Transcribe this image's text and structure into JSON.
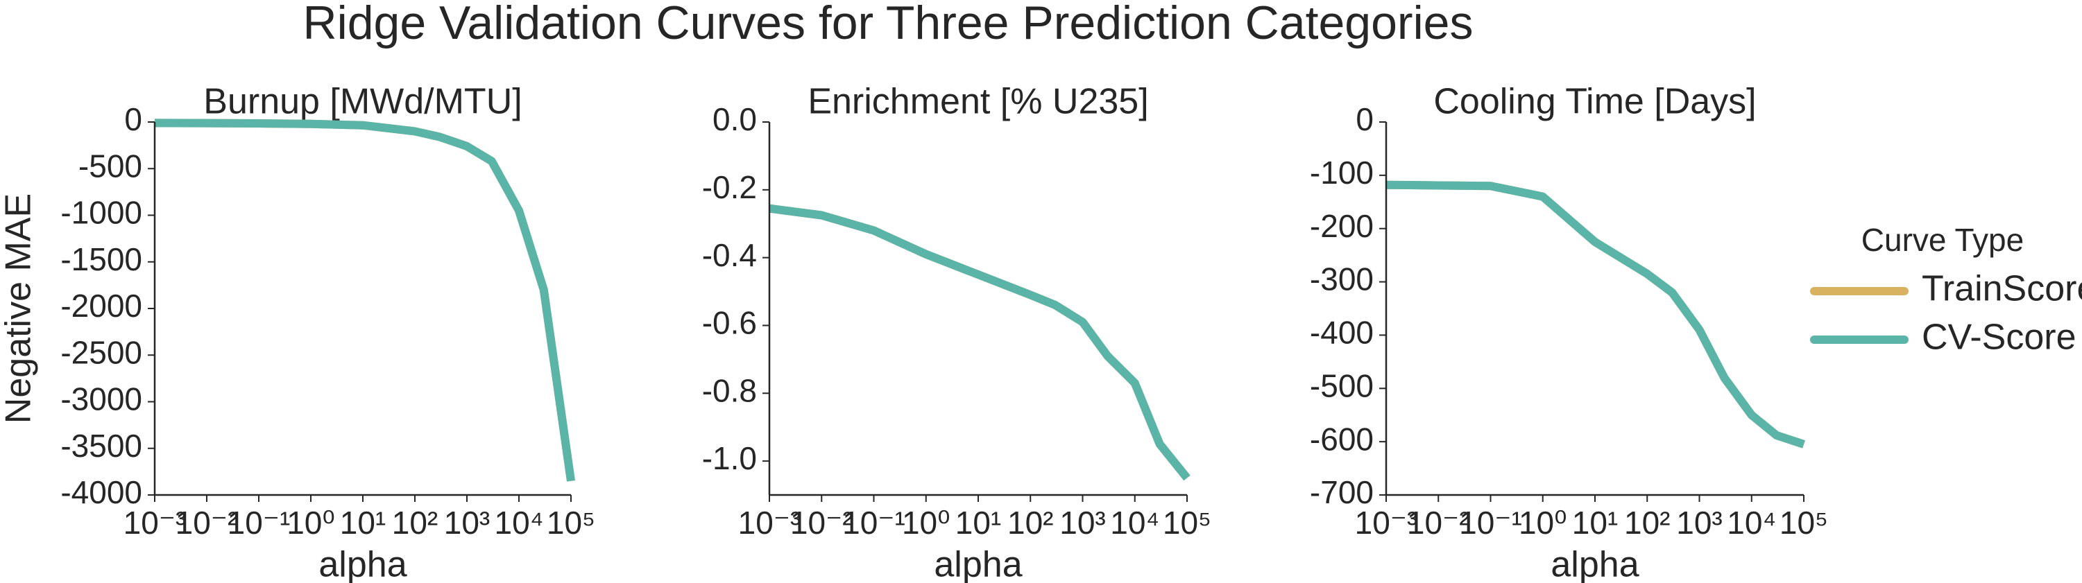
{
  "title": "Ridge Validation Curves for Three Prediction Categories",
  "chart_data": [
    {
      "type": "line",
      "title": "Burnup [MWd/MTU]",
      "xlabel": "alpha",
      "ylabel": "Negative MAE",
      "xscale": "log",
      "x": [
        0.001,
        0.01,
        0.1,
        1,
        10,
        100,
        300,
        1000,
        3000,
        10000,
        30000,
        100000
      ],
      "series": [
        {
          "name": "TrainScore",
          "color": "#d9b260",
          "values": [
            -10,
            -12,
            -15,
            -20,
            -35,
            -100,
            -160,
            -260,
            -420,
            -950,
            -1800,
            -3850
          ]
        },
        {
          "name": "CV-Score",
          "color": "#5ab4a7",
          "values": [
            -10,
            -12,
            -15,
            -20,
            -35,
            -100,
            -160,
            -260,
            -420,
            -950,
            -1800,
            -3850
          ]
        }
      ],
      "xlim": [
        0.001,
        100000
      ],
      "xticks": [
        {
          "value": 0.001,
          "label": "10⁻³"
        },
        {
          "value": 0.01,
          "label": "10⁻²"
        },
        {
          "value": 0.1,
          "label": "10⁻¹"
        },
        {
          "value": 1,
          "label": "10⁰"
        },
        {
          "value": 10,
          "label": "10¹"
        },
        {
          "value": 100,
          "label": "10²"
        },
        {
          "value": 1000,
          "label": "10³"
        },
        {
          "value": 10000,
          "label": "10⁴"
        },
        {
          "value": 100000,
          "label": "10⁵"
        }
      ],
      "ylim": [
        -4000,
        0
      ],
      "yticks": [
        0,
        -500,
        -1000,
        -1500,
        -2000,
        -2500,
        -3000,
        -3500,
        -4000
      ]
    },
    {
      "type": "line",
      "title": "Enrichment [% U235]",
      "xlabel": "alpha",
      "xscale": "log",
      "x": [
        0.001,
        0.01,
        0.1,
        1,
        10,
        100,
        300,
        1000,
        3000,
        10000,
        30000,
        100000
      ],
      "series": [
        {
          "name": "TrainScore",
          "color": "#d9b260",
          "values": [
            -0.255,
            -0.275,
            -0.32,
            -0.39,
            -0.45,
            -0.51,
            -0.54,
            -0.59,
            -0.69,
            -0.77,
            -0.95,
            -1.05
          ]
        },
        {
          "name": "CV-Score",
          "color": "#5ab4a7",
          "values": [
            -0.255,
            -0.275,
            -0.32,
            -0.39,
            -0.45,
            -0.51,
            -0.54,
            -0.59,
            -0.69,
            -0.77,
            -0.95,
            -1.05
          ]
        }
      ],
      "xlim": [
        0.001,
        100000
      ],
      "xticks": [
        {
          "value": 0.001,
          "label": "10⁻³"
        },
        {
          "value": 0.01,
          "label": "10⁻²"
        },
        {
          "value": 0.1,
          "label": "10⁻¹"
        },
        {
          "value": 1,
          "label": "10⁰"
        },
        {
          "value": 10,
          "label": "10¹"
        },
        {
          "value": 100,
          "label": "10²"
        },
        {
          "value": 1000,
          "label": "10³"
        },
        {
          "value": 10000,
          "label": "10⁴"
        },
        {
          "value": 100000,
          "label": "10⁵"
        }
      ],
      "ylim": [
        -1.1,
        0
      ],
      "yticks": [
        {
          "value": 0,
          "label": "0.0"
        },
        -0.2,
        -0.4,
        -0.6,
        -0.8,
        {
          "value": -1,
          "label": "-1.0"
        }
      ]
    },
    {
      "type": "line",
      "title": "Cooling Time [Days]",
      "xlabel": "alpha",
      "xscale": "log",
      "legend": "outside right",
      "legend_title": "Curve Type",
      "x": [
        0.001,
        0.01,
        0.1,
        1,
        10,
        100,
        300,
        1000,
        3000,
        10000,
        30000,
        100000
      ],
      "series": [
        {
          "name": "TrainScore",
          "color": "#d9b260",
          "values": [
            -118,
            -119,
            -120,
            -140,
            -225,
            -285,
            -320,
            -390,
            -480,
            -550,
            -588,
            -605
          ]
        },
        {
          "name": "CV-Score",
          "color": "#5ab4a7",
          "values": [
            -118,
            -119,
            -120,
            -140,
            -225,
            -285,
            -320,
            -390,
            -480,
            -550,
            -588,
            -605
          ]
        }
      ],
      "xlim": [
        0.001,
        100000
      ],
      "xticks": [
        {
          "value": 0.001,
          "label": "10⁻³"
        },
        {
          "value": 0.01,
          "label": "10⁻²"
        },
        {
          "value": 0.1,
          "label": "10⁻¹"
        },
        {
          "value": 1,
          "label": "10⁰"
        },
        {
          "value": 10,
          "label": "10¹"
        },
        {
          "value": 100,
          "label": "10²"
        },
        {
          "value": 1000,
          "label": "10³"
        },
        {
          "value": 10000,
          "label": "10⁴"
        },
        {
          "value": 100000,
          "label": "10⁵"
        }
      ],
      "ylim": [
        -700,
        0
      ],
      "yticks": [
        0,
        -100,
        -200,
        -300,
        -400,
        -500,
        -600,
        -700
      ]
    }
  ]
}
